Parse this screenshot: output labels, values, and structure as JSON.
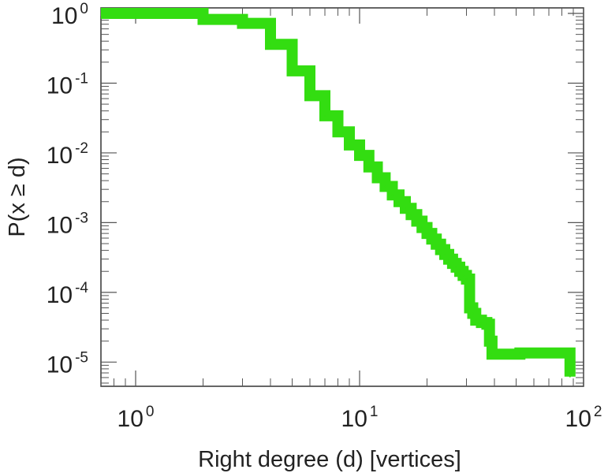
{
  "chart_data": {
    "type": "line",
    "step": true,
    "title": "",
    "xlabel": "Right degree (d) [vertices]",
    "ylabel": "P(x ≥ d)",
    "x_scale": "log",
    "y_scale": "log",
    "xlim": [
      0.7,
      100
    ],
    "ylim": [
      4.5e-06,
      1.2
    ],
    "grid": false,
    "legend": "none",
    "series_color": "#33dd11",
    "x_ticks": [
      {
        "base": "10",
        "exp": "0",
        "value": 1
      },
      {
        "base": "10",
        "exp": "1",
        "value": 10
      },
      {
        "base": "10",
        "exp": "2",
        "value": 100
      }
    ],
    "y_ticks": [
      {
        "base": "10",
        "exp": "0",
        "value": 1
      },
      {
        "base": "10",
        "exp": "-1",
        "value": 0.1
      },
      {
        "base": "10",
        "exp": "-2",
        "value": 0.01
      },
      {
        "base": "10",
        "exp": "-3",
        "value": 0.001
      },
      {
        "base": "10",
        "exp": "-4",
        "value": 0.0001
      },
      {
        "base": "10",
        "exp": "-5",
        "value": 1e-05
      }
    ],
    "series": [
      {
        "x": [
          1,
          2,
          3,
          4,
          5,
          6,
          7,
          8,
          9,
          10,
          11,
          12,
          13,
          14,
          15,
          16,
          17,
          18,
          19,
          20,
          21,
          22,
          23,
          24,
          25,
          26,
          27,
          28,
          29,
          30,
          31,
          32,
          33,
          35,
          37,
          38,
          39,
          52,
          87
        ],
        "y": [
          1.0,
          0.82,
          0.72,
          0.36,
          0.15,
          0.066,
          0.034,
          0.02,
          0.013,
          0.0092,
          0.0063,
          0.0044,
          0.0033,
          0.0025,
          0.002,
          0.0016,
          0.0013,
          0.00105,
          0.00085,
          0.0007,
          0.00058,
          0.00049,
          0.00041,
          0.00035,
          0.0003,
          0.00026,
          0.00023,
          0.0002,
          0.000175,
          0.000155,
          6e-05,
          5e-05,
          4e-05,
          3.7e-05,
          3.5e-05,
          2e-05,
          1.3e-05,
          1.35e-05,
          6.2e-06
        ]
      }
    ]
  }
}
